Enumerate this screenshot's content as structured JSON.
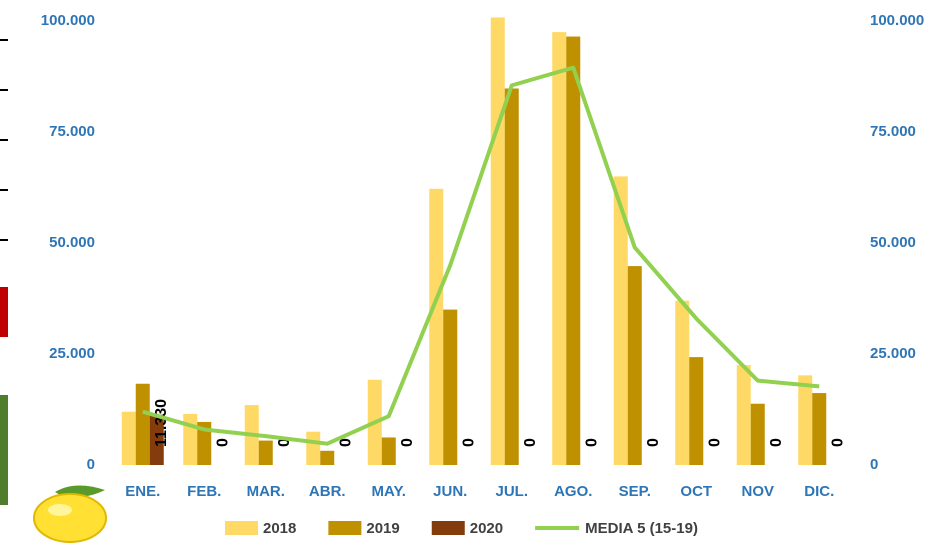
{
  "chart_data": {
    "type": "bar",
    "categories": [
      "ENE.",
      "FEB.",
      "MAR.",
      "ABR.",
      "MAY.",
      "JUN.",
      "JUL.",
      "AGO.",
      "SEP.",
      "OCT",
      "NOV",
      "DIC."
    ],
    "series": [
      {
        "name": "2018",
        "color": "#ffd966",
        "values": [
          12000,
          11500,
          13500,
          7500,
          19200,
          62200,
          100800,
          97500,
          65000,
          37000,
          22500,
          20200
        ]
      },
      {
        "name": "2019",
        "color": "#bf9000",
        "values": [
          18300,
          9700,
          5500,
          3200,
          6200,
          35000,
          84800,
          96500,
          44800,
          24300,
          13800,
          16200
        ]
      },
      {
        "name": "2020",
        "color": "#843c0c",
        "values": [
          11330,
          0,
          0,
          0,
          0,
          0,
          0,
          0,
          0,
          0,
          0,
          0
        ],
        "value_labels": [
          "11.330",
          "0",
          "0",
          "0",
          "0",
          "0",
          "0",
          "0",
          "0",
          "0",
          "0",
          "0"
        ]
      },
      {
        "name": "MEDIA 5 (15-19)",
        "type": "line",
        "color": "#92d050",
        "values": [
          12000,
          8000,
          6500,
          4800,
          11000,
          45000,
          85500,
          89500,
          49000,
          33000,
          19000,
          17700
        ]
      }
    ],
    "ylim": [
      0,
      100000
    ],
    "yticks": [
      0,
      {
        "value": 25000,
        "label": "25.000"
      },
      {
        "value": 50000,
        "label": "50.000"
      },
      {
        "value": 75000,
        "label": "75.000"
      },
      {
        "value": 100000,
        "label": "100.000"
      }
    ],
    "y2lim": [
      0,
      100000
    ],
    "y2ticks": [
      0,
      {
        "value": 25000,
        "label": "25.000"
      },
      {
        "value": 50000,
        "label": "50.000"
      },
      {
        "value": 75000,
        "label": "75.000"
      },
      {
        "value": 100000,
        "label": "100.000"
      }
    ],
    "grid": false,
    "legend": "bottom"
  }
}
